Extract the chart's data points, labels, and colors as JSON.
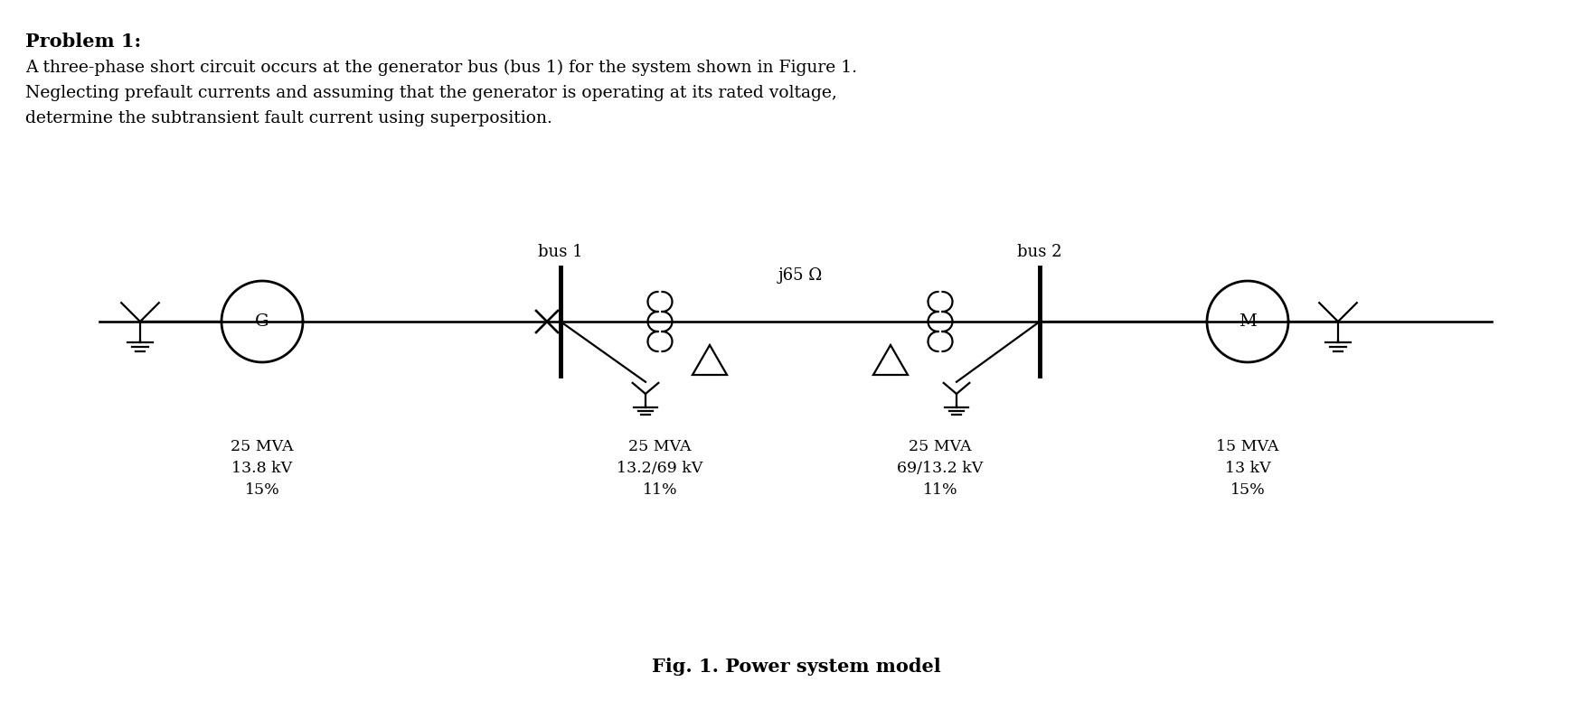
{
  "title_bold": "Problem 1:",
  "body_text": "A three-phase short circuit occurs at the generator bus (bus 1) for the system shown in Figure 1.\nNeglecting prefault currents and assuming that the generator is operating at its rated voltage,\ndetermine the subtransient fault current using superposition.",
  "bus1_label": "bus 1",
  "bus2_label": "bus 2",
  "line_label": "j65 Ω",
  "fig_caption": "Fig. 1. Power system model",
  "gen_label": "G",
  "motor_label": "M",
  "bg_color": "#ffffff",
  "text_color": "#000000",
  "line_color": "#000000",
  "lw": 1.6,
  "fig_w": 17.62,
  "fig_h": 7.86
}
